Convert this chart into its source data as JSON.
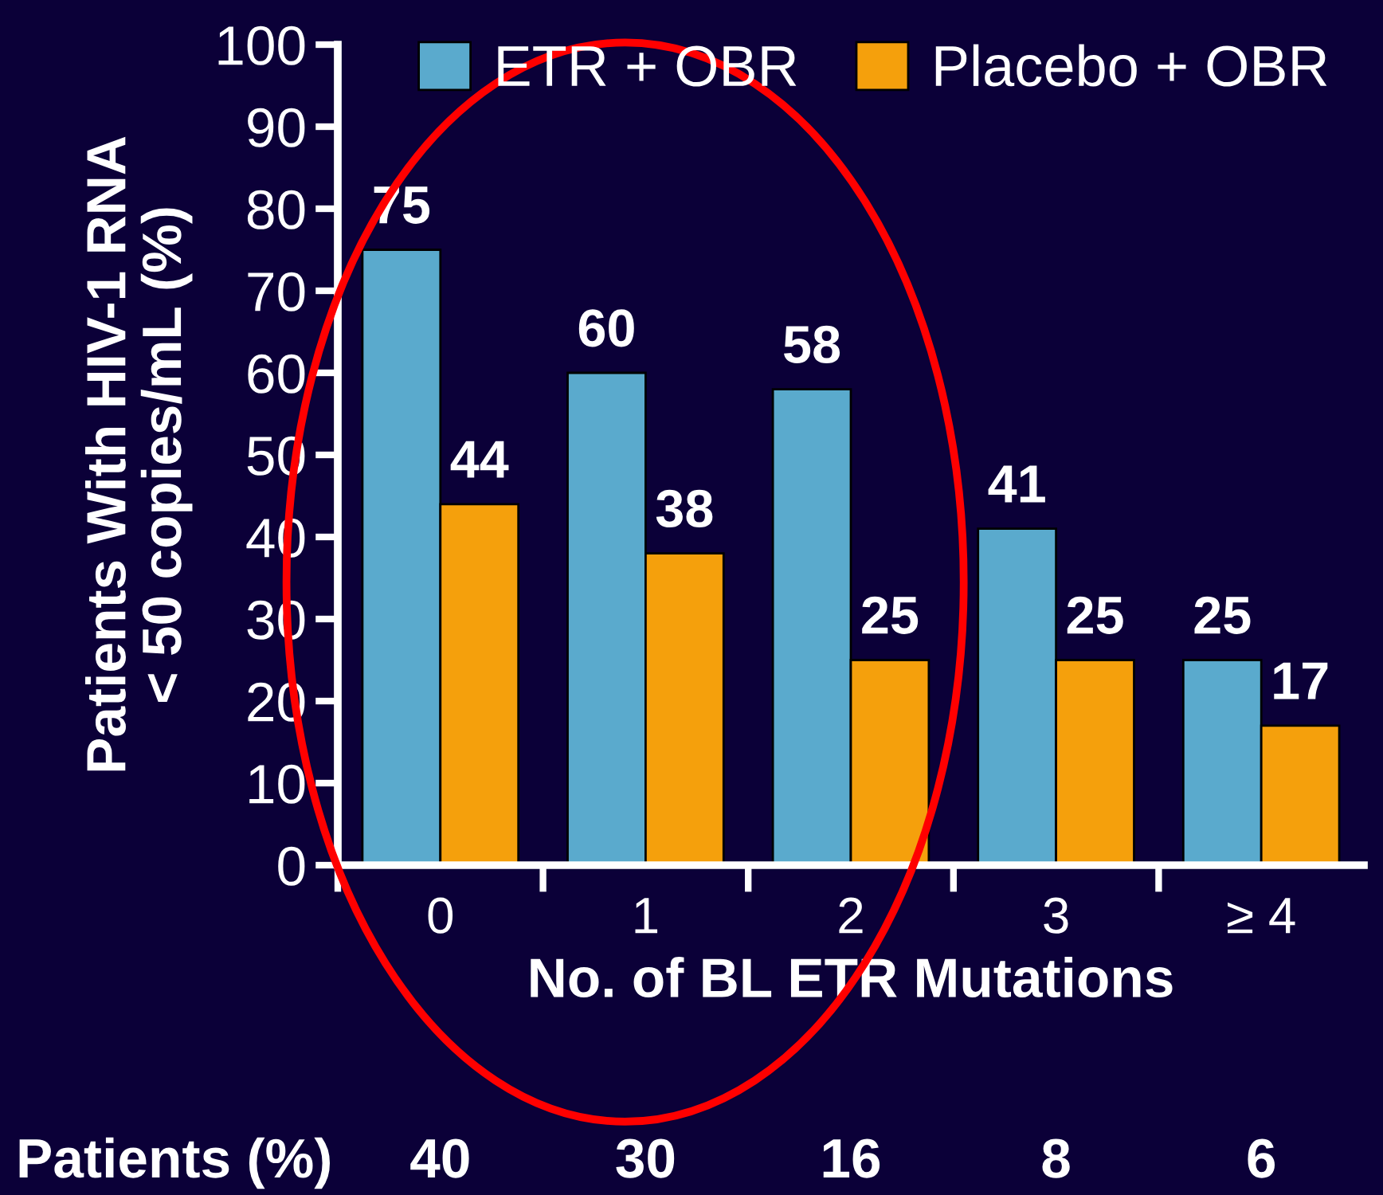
{
  "chart_data": {
    "type": "bar",
    "categories": [
      "0",
      "1",
      "2",
      "3",
      "≥ 4"
    ],
    "series": [
      {
        "name": "ETR + OBR",
        "color": "#5aaacd",
        "values": [
          75,
          60,
          58,
          41,
          25
        ]
      },
      {
        "name": "Placebo + OBR",
        "color": "#f5a00c",
        "values": [
          44,
          38,
          25,
          25,
          17
        ]
      }
    ],
    "xlabel": "No. of BL ETR Mutations",
    "ylabel": "Patients With HIV-1 RNA\n< 50 copies/mL (%)",
    "ylim": [
      0,
      100
    ],
    "yticks": [
      0,
      10,
      20,
      30,
      40,
      50,
      60,
      70,
      80,
      90,
      100
    ],
    "data_labels": true,
    "legend": "top right",
    "annotations": [
      "Patients (%)",
      "40",
      "30",
      "16",
      "8",
      "6"
    ]
  }
}
